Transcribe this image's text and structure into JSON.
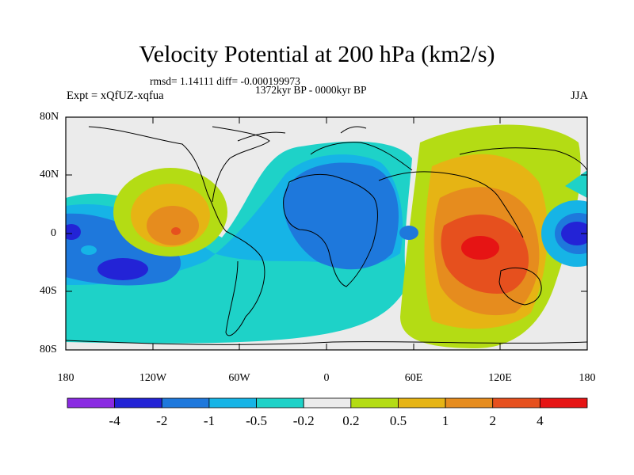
{
  "title": "Velocity Potential at 200 hPa (km2/s)",
  "stats_line": "rmsd= 1.14111 diff= -0.000199973",
  "period_line": "1372kyr BP - 0000kyr BP",
  "experiment_line": "Expt = xQfUZ-xqfua",
  "season": "JJA",
  "y_axis_labels": [
    "80N",
    "40N",
    "0",
    "40S",
    "80S"
  ],
  "x_axis_labels": [
    "180",
    "120W",
    "60W",
    "0",
    "60E",
    "120E",
    "180"
  ],
  "colorbar": {
    "labels": [
      "-4",
      "-2",
      "-1",
      "-0.5",
      "-0.2",
      "0.2",
      "0.5",
      "1",
      "2",
      "4"
    ],
    "colors": [
      "#8a2be2",
      "#2323d6",
      "#1e78dc",
      "#16b4e6",
      "#1ed2c8",
      "#ebebeb",
      "#b4dc14",
      "#e6b414",
      "#e68c1e",
      "#e6501e",
      "#e61414"
    ]
  }
}
